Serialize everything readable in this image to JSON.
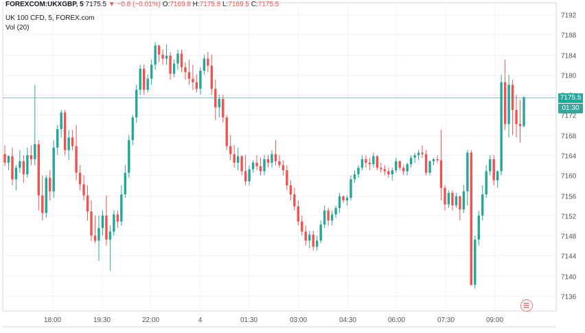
{
  "header": {
    "symbol": "FOREXCOM:UKXGBP, 5",
    "last": "7175.5",
    "arrow": "▼",
    "change": "−0.8 (−0.01%)",
    "open_label": "O:",
    "open": "7169.8",
    "high_label": "H:",
    "high": "7175.8",
    "low_label": "L:",
    "low": "7169.5",
    "close_label": "C:",
    "close": "7175.5",
    "instrument": "UK 100 CFD, 5, FOREX.com",
    "volume": "Vol (20)"
  },
  "price_tag": {
    "value": "7175.5",
    "countdown": "01:30"
  },
  "colors": {
    "up": "#26a69a",
    "down": "#ef5350",
    "grid": "#f0f3fa",
    "axis": "#50535e",
    "countdown_bg": "#37a59a"
  },
  "chart_data": {
    "type": "candlestick",
    "y_ticks": [
      7136,
      7140,
      7144,
      7148,
      7152,
      7156,
      7160,
      7164,
      7168,
      7172,
      7176,
      7180,
      7184,
      7188,
      7192
    ],
    "ylim": [
      7133,
      7193.5
    ],
    "x_ticks": [
      "18:00",
      "19:30",
      "22:00",
      "4",
      "01:30",
      "03:00",
      "04:30",
      "06:00",
      "07:30",
      "09:00"
    ],
    "last_price": 7175.5,
    "candles": [
      [
        7164.2,
        7166.0,
        7161.8,
        7162.5
      ],
      [
        7162.5,
        7164.0,
        7161.0,
        7163.8
      ],
      [
        7163.8,
        7165.5,
        7158.0,
        7159.2
      ],
      [
        7159.2,
        7162.0,
        7157.0,
        7161.5
      ],
      [
        7161.5,
        7165.0,
        7160.5,
        7162.8
      ],
      [
        7162.8,
        7164.0,
        7158.5,
        7160.2
      ],
      [
        7160.2,
        7165.5,
        7159.5,
        7164.0
      ],
      [
        7164.0,
        7166.0,
        7162.0,
        7163.2
      ],
      [
        7163.2,
        7178.0,
        7162.0,
        7166.2
      ],
      [
        7166.2,
        7167.0,
        7153.0,
        7156.0
      ],
      [
        7156.0,
        7160.0,
        7151.0,
        7152.5
      ],
      [
        7152.5,
        7160.0,
        7151.5,
        7159.5
      ],
      [
        7159.5,
        7161.0,
        7155.0,
        7156.8
      ],
      [
        7156.8,
        7167.0,
        7155.5,
        7165.5
      ],
      [
        7165.5,
        7170.0,
        7164.0,
        7169.2
      ],
      [
        7169.2,
        7173.0,
        7167.5,
        7172.5
      ],
      [
        7172.5,
        7173.0,
        7164.0,
        7165.0
      ],
      [
        7165.0,
        7169.0,
        7163.0,
        7167.5
      ],
      [
        7167.5,
        7169.0,
        7165.0,
        7165.8
      ],
      [
        7165.8,
        7170.0,
        7159.0,
        7160.5
      ],
      [
        7160.5,
        7162.0,
        7157.0,
        7158.2
      ],
      [
        7158.2,
        7160.0,
        7155.0,
        7156.0
      ],
      [
        7156.0,
        7158.0,
        7151.0,
        7152.8
      ],
      [
        7152.8,
        7155.0,
        7147.0,
        7148.0
      ],
      [
        7148.0,
        7152.0,
        7146.5,
        7147.0
      ],
      [
        7147.0,
        7152.0,
        7143.0,
        7149.5
      ],
      [
        7149.5,
        7153.0,
        7148.0,
        7152.0
      ],
      [
        7152.0,
        7156.0,
        7146.0,
        7147.2
      ],
      [
        7147.2,
        7150.0,
        7141.0,
        7148.8
      ],
      [
        7148.8,
        7153.0,
        7148.0,
        7152.2
      ],
      [
        7152.2,
        7153.0,
        7149.5,
        7150.8
      ],
      [
        7150.8,
        7158.0,
        7150.0,
        7156.2
      ],
      [
        7156.2,
        7162.0,
        7155.5,
        7160.5
      ],
      [
        7160.5,
        7168.0,
        7159.5,
        7167.0
      ],
      [
        7167.0,
        7172.0,
        7166.0,
        7171.5
      ],
      [
        7171.5,
        7178.0,
        7170.5,
        7177.0
      ],
      [
        7177.0,
        7182.0,
        7176.0,
        7181.2
      ],
      [
        7181.2,
        7182.0,
        7176.0,
        7177.0
      ],
      [
        7177.0,
        7180.0,
        7176.5,
        7179.2
      ],
      [
        7179.2,
        7183.0,
        7178.0,
        7182.0
      ],
      [
        7182.0,
        7186.5,
        7181.0,
        7185.8
      ],
      [
        7185.8,
        7186.0,
        7182.5,
        7184.0
      ],
      [
        7184.0,
        7185.0,
        7182.0,
        7183.2
      ],
      [
        7183.2,
        7186.0,
        7182.0,
        7183.8
      ],
      [
        7183.8,
        7184.5,
        7179.0,
        7180.2
      ],
      [
        7180.2,
        7183.0,
        7179.5,
        7182.2
      ],
      [
        7182.2,
        7185.0,
        7181.0,
        7184.2
      ],
      [
        7184.2,
        7185.0,
        7180.5,
        7181.5
      ],
      [
        7181.5,
        7182.5,
        7179.0,
        7180.5
      ],
      [
        7180.5,
        7183.0,
        7178.0,
        7179.2
      ],
      [
        7179.2,
        7182.0,
        7177.0,
        7178.5
      ],
      [
        7178.5,
        7180.0,
        7176.5,
        7177.2
      ],
      [
        7177.2,
        7181.5,
        7176.0,
        7180.8
      ],
      [
        7180.8,
        7184.0,
        7180.0,
        7183.2
      ],
      [
        7183.2,
        7184.5,
        7180.5,
        7181.8
      ],
      [
        7181.8,
        7184.0,
        7176.0,
        7177.2
      ],
      [
        7177.2,
        7179.0,
        7171.0,
        7173.5
      ],
      [
        7173.5,
        7176.0,
        7171.5,
        7175.2
      ],
      [
        7175.2,
        7176.0,
        7170.5,
        7171.5
      ],
      [
        7171.5,
        7172.0,
        7165.0,
        7165.8
      ],
      [
        7165.8,
        7168.0,
        7163.0,
        7164.2
      ],
      [
        7164.2,
        7166.0,
        7161.5,
        7162.5
      ],
      [
        7162.5,
        7165.5,
        7161.0,
        7163.8
      ],
      [
        7163.8,
        7164.0,
        7160.0,
        7160.8
      ],
      [
        7160.8,
        7164.0,
        7158.0,
        7158.8
      ],
      [
        7158.8,
        7162.0,
        7158.0,
        7161.2
      ],
      [
        7161.2,
        7163.0,
        7160.5,
        7162.5
      ],
      [
        7162.5,
        7164.0,
        7161.0,
        7161.8
      ],
      [
        7161.8,
        7163.5,
        7160.0,
        7160.8
      ],
      [
        7160.8,
        7164.0,
        7160.0,
        7163.2
      ],
      [
        7163.2,
        7164.0,
        7161.5,
        7162.5
      ],
      [
        7162.5,
        7165.0,
        7161.5,
        7164.2
      ],
      [
        7164.2,
        7167.0,
        7162.0,
        7162.8
      ],
      [
        7162.8,
        7164.0,
        7161.5,
        7162.0
      ],
      [
        7162.0,
        7163.0,
        7160.0,
        7161.0
      ],
      [
        7161.0,
        7162.0,
        7157.0,
        7158.0
      ],
      [
        7158.0,
        7159.0,
        7155.0,
        7156.2
      ],
      [
        7156.2,
        7157.5,
        7153.0,
        7153.8
      ],
      [
        7153.8,
        7155.0,
        7150.0,
        7150.8
      ],
      [
        7150.8,
        7152.0,
        7148.0,
        7148.8
      ],
      [
        7148.8,
        7150.0,
        7146.0,
        7147.0
      ],
      [
        7147.0,
        7149.0,
        7145.5,
        7148.2
      ],
      [
        7148.2,
        7149.0,
        7145.0,
        7145.8
      ],
      [
        7145.8,
        7148.0,
        7145.0,
        7147.0
      ],
      [
        7147.0,
        7151.0,
        7146.5,
        7150.2
      ],
      [
        7150.2,
        7154.0,
        7149.5,
        7153.0
      ],
      [
        7153.0,
        7153.5,
        7150.0,
        7151.0
      ],
      [
        7151.0,
        7153.0,
        7150.0,
        7152.2
      ],
      [
        7152.2,
        7154.0,
        7151.5,
        7153.5
      ],
      [
        7153.5,
        7156.5,
        7152.5,
        7155.8
      ],
      [
        7155.8,
        7156.0,
        7154.5,
        7155.0
      ],
      [
        7155.0,
        7156.0,
        7154.0,
        7155.5
      ],
      [
        7155.5,
        7160.0,
        7155.0,
        7159.2
      ],
      [
        7159.2,
        7161.0,
        7158.5,
        7160.2
      ],
      [
        7160.2,
        7162.0,
        7159.5,
        7161.5
      ],
      [
        7161.5,
        7164.0,
        7161.0,
        7163.2
      ],
      [
        7163.2,
        7164.0,
        7161.5,
        7162.5
      ],
      [
        7162.5,
        7163.5,
        7161.0,
        7162.2
      ],
      [
        7162.2,
        7164.5,
        7161.5,
        7163.8
      ],
      [
        7163.8,
        7164.0,
        7161.0,
        7161.5
      ],
      [
        7161.5,
        7162.5,
        7160.5,
        7161.2
      ],
      [
        7161.2,
        7162.0,
        7160.0,
        7160.8
      ],
      [
        7160.8,
        7161.5,
        7159.5,
        7160.2
      ],
      [
        7160.2,
        7161.5,
        7159.0,
        7161.0
      ],
      [
        7161.0,
        7163.5,
        7160.5,
        7162.8
      ],
      [
        7162.8,
        7163.0,
        7161.0,
        7161.5
      ],
      [
        7161.5,
        7162.0,
        7160.0,
        7160.8
      ],
      [
        7160.8,
        7162.5,
        7160.0,
        7162.2
      ],
      [
        7162.2,
        7164.0,
        7161.5,
        7163.5
      ],
      [
        7163.5,
        7164.5,
        7162.5,
        7164.0
      ],
      [
        7164.0,
        7165.0,
        7163.0,
        7164.5
      ],
      [
        7164.5,
        7166.0,
        7163.5,
        7164.2
      ],
      [
        7164.2,
        7165.0,
        7160.0,
        7160.5
      ],
      [
        7160.5,
        7163.0,
        7160.0,
        7162.8
      ],
      [
        7162.8,
        7163.5,
        7162.0,
        7163.2
      ],
      [
        7163.2,
        7164.0,
        7162.5,
        7163.0
      ],
      [
        7163.0,
        7169.0,
        7155.0,
        7157.5
      ],
      [
        7157.5,
        7158.0,
        7153.0,
        7154.2
      ],
      [
        7154.2,
        7157.0,
        7153.5,
        7156.5
      ],
      [
        7156.5,
        7157.0,
        7153.0,
        7154.0
      ],
      [
        7154.0,
        7156.5,
        7153.5,
        7155.8
      ],
      [
        7155.8,
        7156.0,
        7151.0,
        7153.2
      ],
      [
        7153.2,
        7158.0,
        7152.5,
        7156.8
      ],
      [
        7156.8,
        7165.0,
        7154.0,
        7164.5
      ],
      [
        7164.5,
        7165.0,
        7138.0,
        7138.2
      ],
      [
        7138.2,
        7148.0,
        7137.5,
        7147.2
      ],
      [
        7147.2,
        7153.0,
        7146.0,
        7152.0
      ],
      [
        7152.0,
        7158.0,
        7151.0,
        7156.2
      ],
      [
        7156.2,
        7162.0,
        7155.5,
        7160.8
      ],
      [
        7160.8,
        7164.0,
        7160.0,
        7163.2
      ],
      [
        7163.2,
        7164.0,
        7158.0,
        7159.0
      ],
      [
        7159.0,
        7161.0,
        7157.5,
        7160.8
      ],
      [
        7160.8,
        7180.0,
        7160.0,
        7178.5
      ],
      [
        7178.5,
        7183.0,
        7169.0,
        7170.2
      ],
      [
        7170.2,
        7180.0,
        7167.5,
        7178.0
      ],
      [
        7178.0,
        7179.0,
        7168.0,
        7173.0
      ],
      [
        7173.0,
        7176.0,
        7167.5,
        7170.2
      ],
      [
        7170.2,
        7175.0,
        7166.5,
        7169.8
      ],
      [
        7169.8,
        7175.8,
        7169.5,
        7175.5
      ]
    ]
  }
}
